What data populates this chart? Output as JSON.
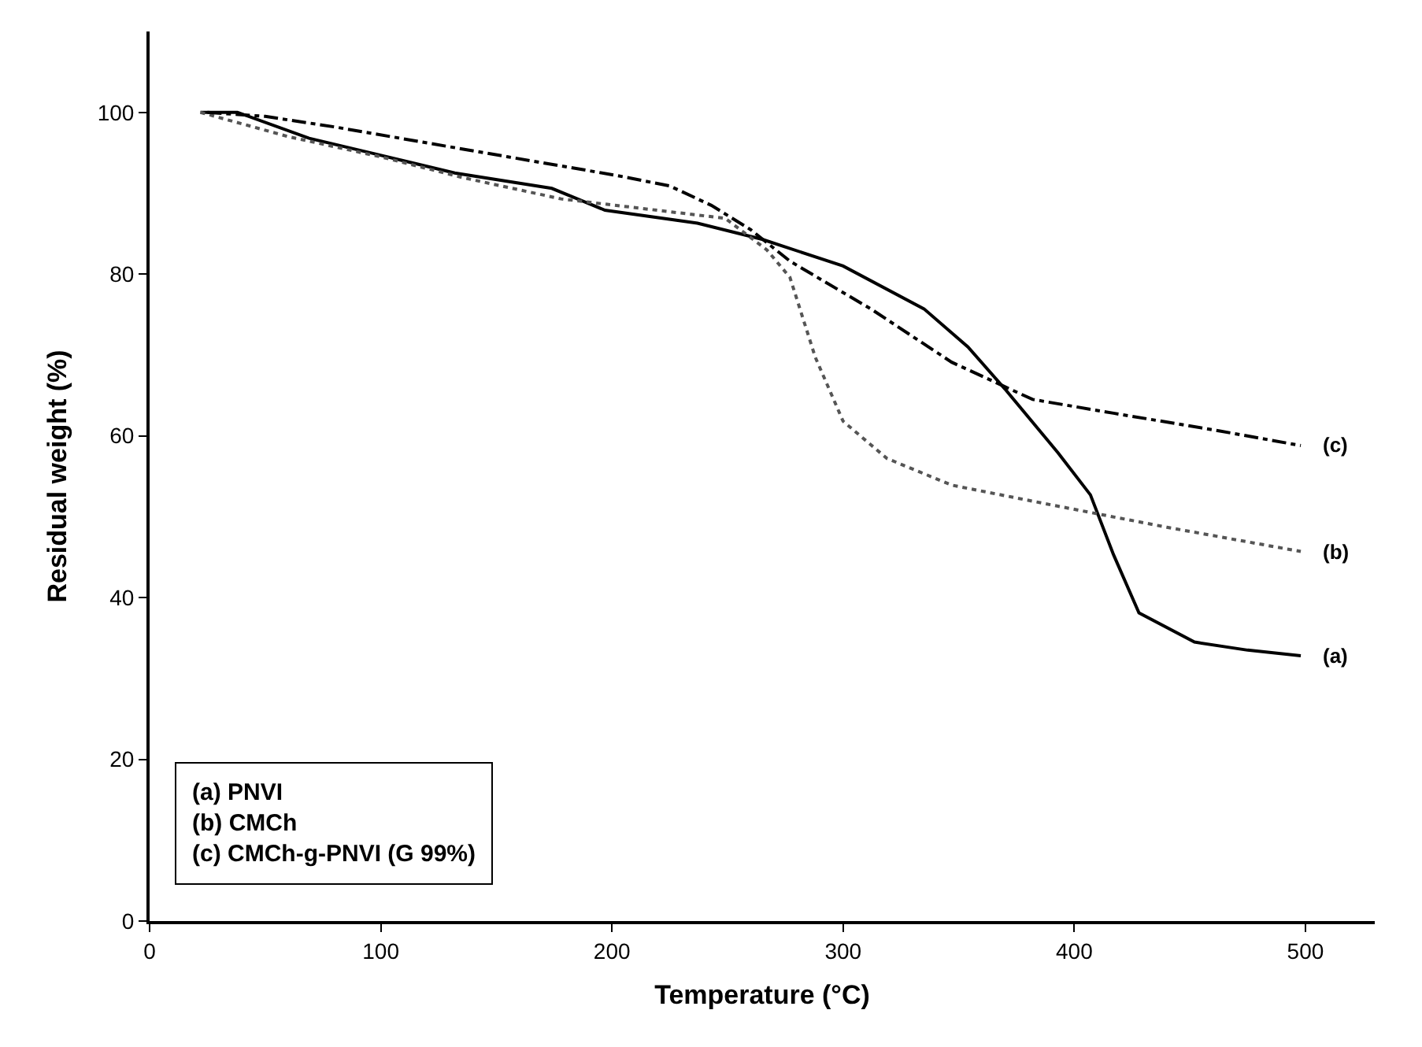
{
  "chart_data": {
    "type": "line",
    "xlabel": "Temperature (°C)",
    "ylabel": "Residual weight (%)",
    "xlim": [
      0,
      530
    ],
    "ylim": [
      0,
      110
    ],
    "xticks": [
      0,
      100,
      200,
      300,
      400,
      500
    ],
    "yticks": [
      0,
      20,
      40,
      60,
      80,
      100
    ],
    "legend": false,
    "marker": "none",
    "annotations": [
      "(a) PNVI\n(b) CMCh\n(c) CMCh-g-PNVI (G 99%)"
    ],
    "series": [
      {
        "name": "(a)",
        "color": "#000000",
        "line_style": "solid",
        "x": [
          22,
          38,
          69,
          97,
          132,
          174,
          197,
          237,
          265,
          300,
          335,
          354,
          370,
          393,
          407,
          417,
          428,
          452,
          475,
          498
        ],
        "values": [
          100,
          100,
          96.8,
          94.9,
          92.5,
          90.6,
          87.9,
          86.3,
          84.3,
          81,
          75.7,
          71,
          65.8,
          57.9,
          52.7,
          45.3,
          38.1,
          34.5,
          33.5,
          32.8
        ]
      },
      {
        "name": "(b)",
        "color": "#555555",
        "line_style": "dotted",
        "x": [
          22,
          60,
          100,
          136,
          178,
          249,
          267,
          277,
          288,
          300,
          319,
          347,
          393,
          440,
          498
        ],
        "values": [
          100,
          97,
          94.5,
          91.9,
          89.3,
          86.9,
          83,
          79.6,
          69.7,
          61.8,
          57.2,
          53.9,
          51.3,
          48.7,
          45.7
        ]
      },
      {
        "name": "(c)",
        "color": "#000000",
        "line_style": "dashdot",
        "x": [
          25,
          50,
          80,
          155,
          202,
          225,
          243,
          260,
          277,
          312,
          347,
          382,
          417,
          463,
          498
        ],
        "values": [
          100,
          99.5,
          98.2,
          94.5,
          92.2,
          90.9,
          88.5,
          85.5,
          81.6,
          75.7,
          69.1,
          64.5,
          62.8,
          60.6,
          58.8
        ]
      }
    ]
  }
}
